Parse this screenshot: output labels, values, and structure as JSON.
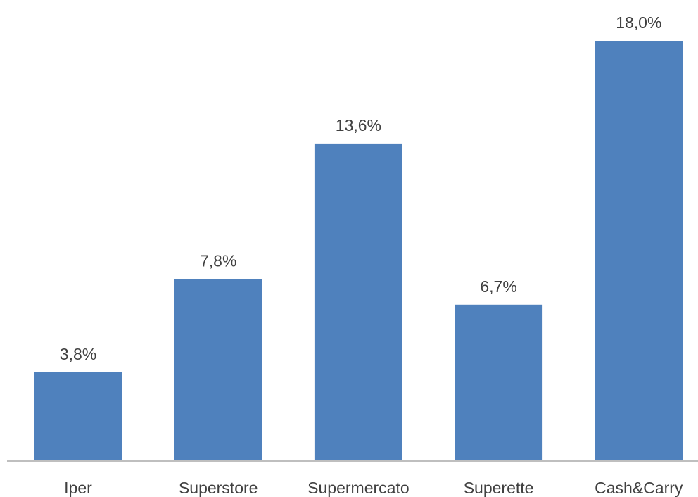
{
  "chart_data": {
    "type": "bar",
    "categories": [
      "Iper",
      "Superstore",
      "Supermercato",
      "Superette",
      "Cash&Carry"
    ],
    "values": [
      3.8,
      7.8,
      13.6,
      6.7,
      18.0
    ],
    "data_labels": [
      "3,8%",
      "7,8%",
      "13,6%",
      "6,7%",
      "18,0%"
    ],
    "title": "",
    "xlabel": "",
    "ylabel": "",
    "ylim": [
      0,
      18.0
    ],
    "grid": false,
    "legend": "none",
    "bar_color": "#4F81BD",
    "axis_color": "#BFBFBF",
    "text_color": "#404040"
  }
}
